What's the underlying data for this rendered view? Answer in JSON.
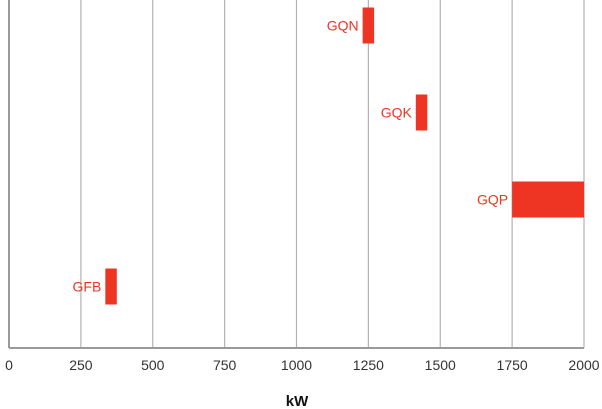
{
  "chart_data": {
    "type": "bar",
    "orientation": "horizontal",
    "style": "floating-range",
    "xlabel": "kW",
    "ylabel": "",
    "title": "",
    "xlim": [
      0,
      2000
    ],
    "xticks": [
      0,
      250,
      500,
      750,
      1000,
      1250,
      1500,
      1750,
      2000
    ],
    "grid": "vertical",
    "categories": [
      "GQN",
      "GQK",
      "GQP",
      "GFB"
    ],
    "ranges": [
      {
        "label": "GQN",
        "start": 1230,
        "end": 1270
      },
      {
        "label": "GQK",
        "start": 1415,
        "end": 1455
      },
      {
        "label": "GQP",
        "start": 1750,
        "end": 2000
      },
      {
        "label": "GFB",
        "start": 335,
        "end": 375
      }
    ],
    "colors": {
      "bar": "#ee3524",
      "label": "#ee3524",
      "grid": "#b3b3b3",
      "axis": "#999999"
    }
  }
}
